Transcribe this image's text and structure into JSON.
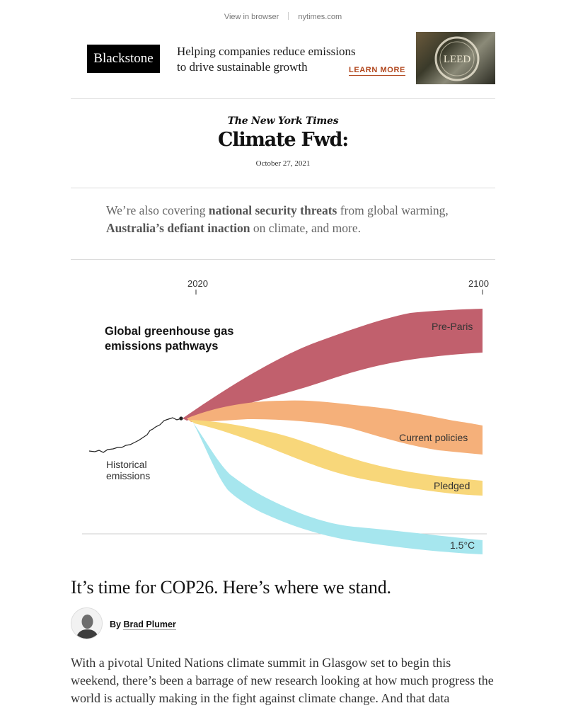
{
  "topbar": {
    "view_in_browser": "View in browser",
    "site": "nytimes.com"
  },
  "ad": {
    "logo": "Blackstone",
    "line1": "Helping companies reduce emissions",
    "line2": "to drive sustainable growth",
    "cta": "LEARN MORE",
    "photo_text": "LEED"
  },
  "masthead": {
    "brand": "The New York Times",
    "title": "Climate Fwd:",
    "date": "October 27, 2021"
  },
  "intro": {
    "t1": "We’re also covering ",
    "link1": "national security threats",
    "t2": " from global warming, ",
    "link2": "Australia’s defiant inaction",
    "t3": " on climate, and more."
  },
  "chart_data": {
    "type": "area",
    "title": "Global greenhouse gas emissions pathways",
    "x_ticks": [
      "2020",
      "2100"
    ],
    "historical_label": "Historical emissions",
    "series": [
      {
        "name": "Pre-Paris",
        "color": "#c1606d"
      },
      {
        "name": "Current policies",
        "color": "#f5b07a"
      },
      {
        "name": "Pledged",
        "color": "#f8d77a"
      },
      {
        "name": "1.5°C",
        "color": "#a6e6ee"
      }
    ]
  },
  "article": {
    "headline": "It’s time for COP26. Here’s where we stand.",
    "by_prefix": "By ",
    "author": "Brad Plumer",
    "body": "With a pivotal United Nations climate summit in Glasgow set to begin this weekend, there’s been a barrage of new research looking at how much progress the world is actually making in the fight against climate change. And that data"
  }
}
